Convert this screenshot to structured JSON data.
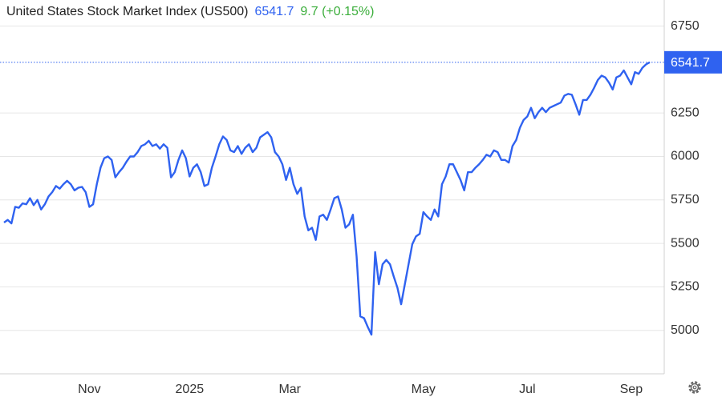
{
  "chart_data": {
    "type": "line",
    "title": "United States Stock Market Index (US500)",
    "price": "6541.7",
    "change": "9.7 (+0.15%)",
    "color": "#2f62f0",
    "grid": true,
    "ylim": [
      4750,
      6900
    ],
    "yticks": [
      5000,
      5250,
      5500,
      5750,
      6000,
      6250,
      6750
    ],
    "categories": [
      null,
      null,
      null,
      null,
      null,
      null,
      null,
      null,
      null,
      null,
      null,
      null,
      null,
      null,
      null,
      null,
      null,
      null,
      null,
      null,
      null,
      null,
      null,
      "Nov",
      null,
      null,
      null,
      null,
      null,
      null,
      null,
      null,
      null,
      null,
      null,
      null,
      null,
      null,
      null,
      null,
      null,
      null,
      null,
      null,
      null,
      null,
      null,
      null,
      null,
      null,
      "2025",
      null,
      null,
      null,
      null,
      null,
      null,
      null,
      null,
      null,
      null,
      null,
      null,
      null,
      null,
      null,
      null,
      null,
      null,
      null,
      null,
      null,
      null,
      null,
      null,
      null,
      null,
      "Mar",
      null,
      null,
      null,
      null,
      null,
      null,
      null,
      null,
      null,
      null,
      null,
      null,
      null,
      null,
      null,
      null,
      null,
      null,
      null,
      null,
      null,
      null,
      null,
      null,
      null,
      null,
      null,
      null,
      null,
      null,
      null,
      null,
      null,
      null,
      null,
      "May",
      null,
      null,
      null,
      null,
      null,
      null,
      null,
      null,
      null,
      null,
      null,
      null,
      null,
      null,
      null,
      null,
      null,
      null,
      null,
      null,
      null,
      null,
      null,
      null,
      null,
      null,
      null,
      "Jul",
      null,
      null,
      null,
      null,
      null,
      null,
      null,
      null,
      null,
      null,
      null,
      null,
      null,
      null,
      null,
      null,
      null,
      null,
      null,
      null,
      null,
      null,
      null,
      null,
      null,
      null,
      null,
      "Sep",
      null,
      null,
      null,
      null,
      null
    ],
    "values": [
      5620,
      5635,
      5615,
      5710,
      5705,
      5730,
      5725,
      5760,
      5720,
      5750,
      5695,
      5725,
      5770,
      5795,
      5830,
      5815,
      5840,
      5860,
      5840,
      5805,
      5820,
      5825,
      5795,
      5710,
      5725,
      5840,
      5935,
      5990,
      6000,
      5980,
      5880,
      5910,
      5935,
      5970,
      6000,
      6000,
      6025,
      6060,
      6070,
      6090,
      6060,
      6070,
      6045,
      6070,
      6050,
      5880,
      5910,
      5980,
      6035,
      5990,
      5885,
      5935,
      5955,
      5910,
      5830,
      5840,
      5935,
      6000,
      6070,
      6115,
      6095,
      6035,
      6025,
      6060,
      6015,
      6050,
      6070,
      6025,
      6050,
      6110,
      6125,
      6140,
      6110,
      6025,
      6000,
      5955,
      5865,
      5935,
      5840,
      5785,
      5820,
      5655,
      5575,
      5590,
      5520,
      5655,
      5665,
      5635,
      5695,
      5760,
      5770,
      5695,
      5590,
      5610,
      5665,
      5425,
      5080,
      5070,
      5020,
      4975,
      5450,
      5265,
      5380,
      5405,
      5380,
      5310,
      5245,
      5150,
      5265,
      5380,
      5495,
      5540,
      5555,
      5680,
      5655,
      5635,
      5695,
      5655,
      5840,
      5885,
      5955,
      5955,
      5910,
      5865,
      5805,
      5910,
      5910,
      5935,
      5955,
      5980,
      6010,
      6000,
      6035,
      6025,
      5980,
      5980,
      5965,
      6060,
      6095,
      6165,
      6210,
      6230,
      6280,
      6220,
      6255,
      6280,
      6255,
      6280,
      6290,
      6300,
      6310,
      6350,
      6360,
      6355,
      6300,
      6240,
      6325,
      6325,
      6355,
      6395,
      6440,
      6465,
      6455,
      6425,
      6385,
      6455,
      6465,
      6495,
      6455,
      6415,
      6485,
      6475,
      6510,
      6530,
      6541.7
    ]
  }
}
